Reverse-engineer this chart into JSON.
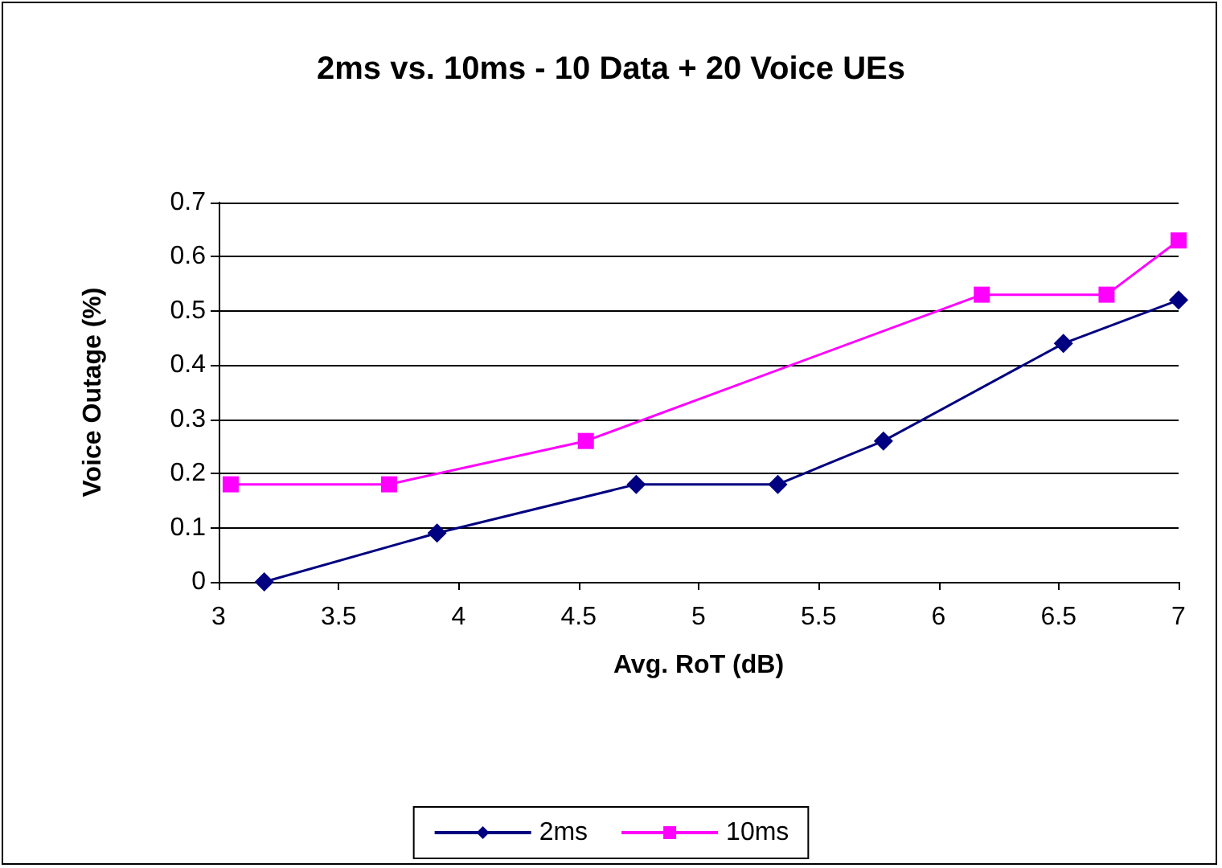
{
  "chart_data": {
    "type": "line",
    "title": "2ms vs. 10ms - 10 Data + 20 Voice UEs",
    "xlabel": "Avg. RoT (dB)",
    "ylabel": "Voice Outage (%)",
    "xlim": [
      3,
      7
    ],
    "xticks": [
      3,
      3.5,
      4,
      4.5,
      5,
      5.5,
      6,
      6.5,
      7
    ],
    "ylim": [
      0,
      0.7
    ],
    "yticks": [
      0,
      0.1,
      0.2,
      0.3,
      0.4,
      0.5,
      0.6,
      0.7
    ],
    "grid": "y",
    "legend": "bottom",
    "series": [
      {
        "name": "2ms",
        "color": "#000080",
        "marker": "diamond",
        "x": [
          3.19,
          3.91,
          4.74,
          5.33,
          5.77,
          6.52,
          7
        ],
        "values": [
          0,
          0.09,
          0.18,
          0.18,
          0.26,
          0.44,
          0.52
        ]
      },
      {
        "name": "10ms",
        "color": "#ff00ff",
        "marker": "square",
        "x": [
          3.05,
          3.71,
          4.53,
          6.18,
          6.7,
          7
        ],
        "values": [
          0.18,
          0.18,
          0.26,
          0.53,
          0.53,
          0.63
        ]
      }
    ]
  }
}
